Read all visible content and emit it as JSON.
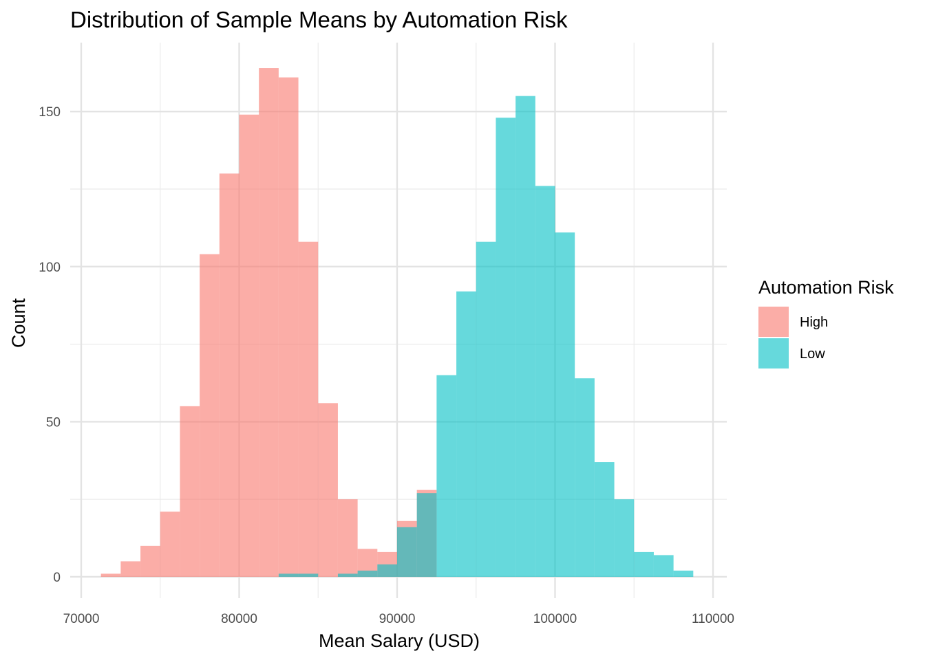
{
  "chart_data": {
    "type": "bar",
    "title": "Distribution of Sample Means by Automation Risk",
    "xlabel": "Mean Salary (USD)",
    "ylabel": "Count",
    "xlim": [
      70000,
      110000
    ],
    "ylim": [
      0,
      165
    ],
    "grid": true,
    "x_ticks": [
      "70000",
      "80000",
      "90000",
      "100000",
      "110000"
    ],
    "y_ticks": [
      "0",
      "50",
      "100",
      "150"
    ],
    "legend": {
      "title": "Automation Risk",
      "position": "right",
      "items": [
        {
          "label": "High",
          "color": "#F8766D"
        },
        {
          "label": "Low",
          "color": "#00BFC4"
        }
      ]
    },
    "bin_width": 1250,
    "series": [
      {
        "name": "High",
        "color": "#F8766D",
        "bins": [
          {
            "x": 71875,
            "count": 1
          },
          {
            "x": 73125,
            "count": 5
          },
          {
            "x": 74375,
            "count": 10
          },
          {
            "x": 75625,
            "count": 21
          },
          {
            "x": 76875,
            "count": 55
          },
          {
            "x": 78125,
            "count": 104
          },
          {
            "x": 79375,
            "count": 130
          },
          {
            "x": 80625,
            "count": 149
          },
          {
            "x": 81875,
            "count": 164
          },
          {
            "x": 83125,
            "count": 161
          },
          {
            "x": 84375,
            "count": 108
          },
          {
            "x": 85625,
            "count": 56
          },
          {
            "x": 86875,
            "count": 25
          },
          {
            "x": 88125,
            "count": 9
          },
          {
            "x": 89375,
            "count": 8
          },
          {
            "x": 90625,
            "count": 18
          },
          {
            "x": 91875,
            "count": 28
          }
        ]
      },
      {
        "name": "Low",
        "color": "#00BFC4",
        "bins": [
          {
            "x": 83125,
            "count": 1
          },
          {
            "x": 84375,
            "count": 1
          },
          {
            "x": 86875,
            "count": 1
          },
          {
            "x": 88125,
            "count": 2
          },
          {
            "x": 89375,
            "count": 4
          },
          {
            "x": 90625,
            "count": 16
          },
          {
            "x": 91875,
            "count": 27
          },
          {
            "x": 93125,
            "count": 65
          },
          {
            "x": 94375,
            "count": 92
          },
          {
            "x": 95625,
            "count": 108
          },
          {
            "x": 96875,
            "count": 148
          },
          {
            "x": 98125,
            "count": 155
          },
          {
            "x": 99375,
            "count": 126
          },
          {
            "x": 100625,
            "count": 111
          },
          {
            "x": 101875,
            "count": 64
          },
          {
            "x": 103125,
            "count": 37
          },
          {
            "x": 104375,
            "count": 25
          },
          {
            "x": 105625,
            "count": 8
          },
          {
            "x": 106875,
            "count": 7
          },
          {
            "x": 108125,
            "count": 2
          }
        ]
      }
    ]
  }
}
